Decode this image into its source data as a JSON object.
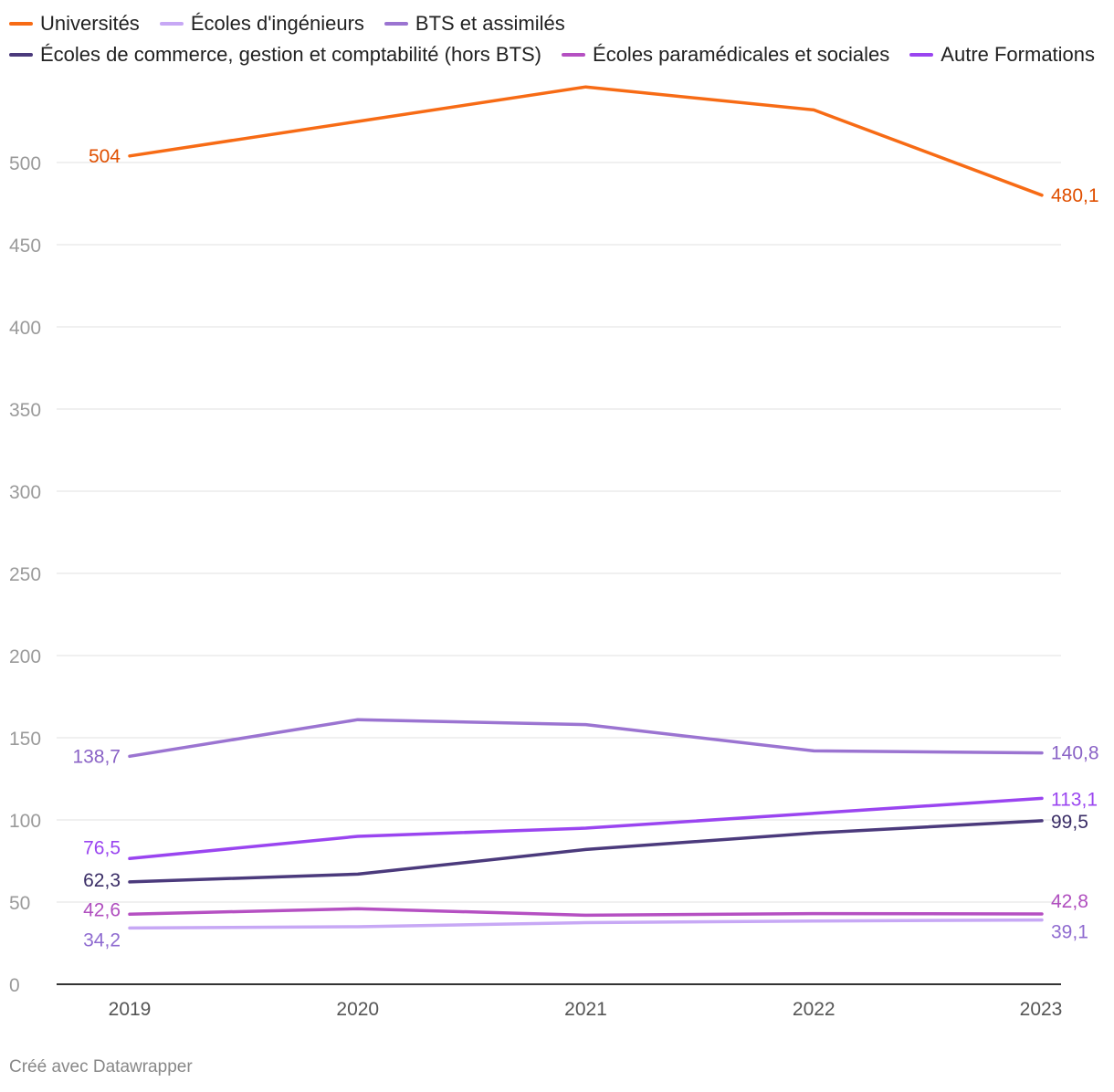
{
  "chart_data": {
    "type": "line",
    "title": "",
    "xlabel": "",
    "ylabel": "",
    "x": [
      "2019",
      "2020",
      "2021",
      "2022",
      "2023"
    ],
    "ylim": [
      0,
      550
    ],
    "yticks": [
      0,
      50,
      100,
      150,
      200,
      250,
      300,
      350,
      400,
      450,
      500
    ],
    "grid": true,
    "legend_position": "top",
    "series": [
      {
        "name": "Universités",
        "color": "#f76b15",
        "label_color": "#e04f00",
        "values": [
          504,
          525,
          546,
          532,
          480.1
        ],
        "start_label": "504",
        "end_label": "480,1"
      },
      {
        "name": "Écoles d'ingénieurs",
        "color": "#c7a8f5",
        "label_color": "#8f6bd0",
        "values": [
          34.2,
          35,
          37.5,
          38.5,
          39.1
        ],
        "start_label": "34,2",
        "end_label": "39,1"
      },
      {
        "name": "BTS et assimilés",
        "color": "#9b74d1",
        "label_color": "#8a63c6",
        "values": [
          138.7,
          161,
          158,
          142,
          140.8
        ],
        "start_label": "138,7",
        "end_label": "140,8"
      },
      {
        "name": "Écoles de commerce, gestion et comptabilité (hors BTS)",
        "color": "#4b3a7c",
        "label_color": "#3a2d66",
        "values": [
          62.3,
          67,
          82,
          92,
          99.5
        ],
        "start_label": "62,3",
        "end_label": "99,5"
      },
      {
        "name": "Écoles paramédicales et sociales",
        "color": "#b550c2",
        "label_color": "#b04fbf",
        "values": [
          42.6,
          46,
          42,
          43,
          42.8
        ],
        "start_label": "42,6",
        "end_label": "42,8"
      },
      {
        "name": "Autre Formations",
        "color": "#9a45f0",
        "label_color": "#9a45f0",
        "values": [
          76.5,
          90,
          95,
          104,
          113.1
        ],
        "start_label": "76,5",
        "end_label": "113,1"
      }
    ]
  },
  "footer": {
    "credit": "Créé avec Datawrapper"
  }
}
